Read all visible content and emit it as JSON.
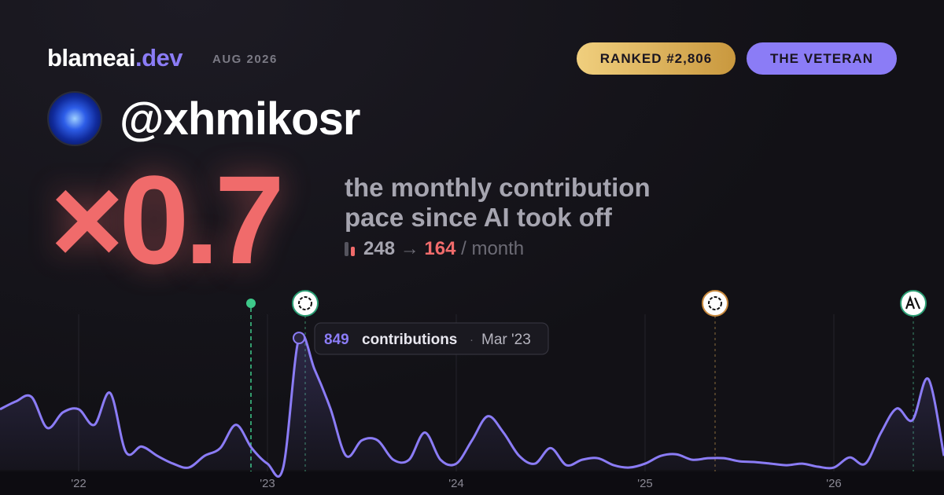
{
  "brand": {
    "name": "blameai",
    "tld": ".dev"
  },
  "date": "AUG 2026",
  "badges": {
    "rank": "RANKED #2,806",
    "title": "THE VETERAN"
  },
  "username": "@xhmikosr",
  "pace": {
    "value": 0.7,
    "label": "×0.7"
  },
  "description": "the monthly contribution pace since AI took off",
  "stats": {
    "before": 248,
    "arrow": "→",
    "after": 164,
    "unit": "/ month"
  },
  "chart_data": {
    "type": "line",
    "categories": [
      null,
      null,
      null,
      null,
      null,
      "'22",
      null,
      null,
      null,
      null,
      null,
      null,
      null,
      null,
      null,
      null,
      null,
      "'23",
      null,
      null,
      null,
      null,
      null,
      null,
      null,
      null,
      null,
      null,
      null,
      "'24",
      null,
      null,
      null,
      null,
      null,
      null,
      null,
      null,
      null,
      null,
      null,
      "'25",
      null,
      null,
      null,
      null,
      null,
      null,
      null,
      null,
      null,
      null,
      null,
      "'26",
      null,
      null,
      null,
      null,
      null,
      null,
      null
    ],
    "series": [
      {
        "name": "contributions",
        "color": "#8b7cf6",
        "values": [
          390,
          440,
          470,
          270,
          370,
          390,
          290,
          495,
          115,
          150,
          90,
          40,
          15,
          90,
          140,
          290,
          140,
          40,
          15,
          849,
          645,
          395,
          90,
          190,
          190,
          65,
          65,
          240,
          65,
          40,
          190,
          345,
          240,
          90,
          40,
          140,
          30,
          65,
          75,
          30,
          15,
          40,
          90,
          100,
          65,
          75,
          75,
          55,
          50,
          40,
          30,
          40,
          20,
          15,
          80,
          40,
          240,
          395,
          320,
          585,
          90
        ]
      }
    ],
    "ylim": [
      0,
      900
    ],
    "tooltip": {
      "value": 849,
      "label": "contributions",
      "date": "Mar '23"
    }
  }
}
